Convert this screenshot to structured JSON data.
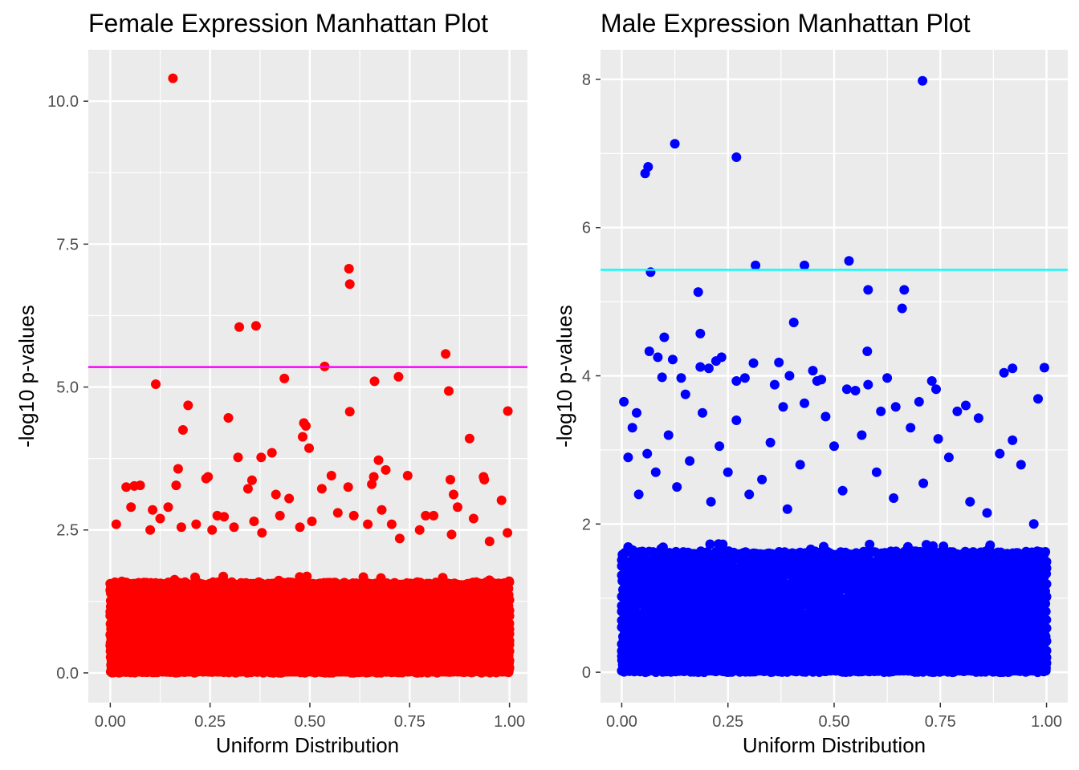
{
  "chart_data": [
    {
      "type": "scatter",
      "title": "Female Expression Manhattan Plot",
      "xlabel": "Uniform Distribution",
      "ylabel": "-log10 p-values",
      "xlim": [
        -0.055,
        1.045
      ],
      "ylim": [
        -0.52,
        10.9
      ],
      "x_ticks": [
        0,
        0.25,
        0.5,
        0.75,
        1
      ],
      "x_tick_labels": [
        "0.00",
        "0.25",
        "0.50",
        "0.75",
        "1.00"
      ],
      "y_ticks": [
        0,
        2.5,
        5,
        7.5,
        10
      ],
      "y_tick_labels": [
        "0.0",
        "2.5",
        "5.0",
        "7.5",
        "10.0"
      ],
      "grid": true,
      "point_color": "#ff0000",
      "threshold": 5.35,
      "threshold_color": "#ff00ff",
      "dense_band_max": 1.7,
      "sample_seed": 17,
      "n_background_points": 2600,
      "points": [
        [
          0.157,
          10.4
        ],
        [
          0.598,
          7.07
        ],
        [
          0.6,
          6.8
        ],
        [
          0.323,
          6.05
        ],
        [
          0.365,
          6.07
        ],
        [
          0.84,
          5.58
        ],
        [
          0.537,
          5.36
        ],
        [
          0.114,
          5.05
        ],
        [
          0.436,
          5.15
        ],
        [
          0.662,
          5.1
        ],
        [
          0.722,
          5.18
        ],
        [
          0.848,
          4.93
        ],
        [
          0.195,
          4.68
        ],
        [
          0.6,
          4.57
        ],
        [
          0.996,
          4.58
        ],
        [
          0.485,
          4.37
        ],
        [
          0.49,
          4.32
        ],
        [
          0.296,
          4.46
        ],
        [
          0.482,
          4.13
        ],
        [
          0.182,
          4.25
        ],
        [
          0.9,
          4.1
        ],
        [
          0.498,
          3.93
        ],
        [
          0.32,
          3.77
        ],
        [
          0.378,
          3.77
        ],
        [
          0.405,
          3.85
        ],
        [
          0.672,
          3.72
        ],
        [
          0.17,
          3.57
        ],
        [
          0.355,
          3.37
        ],
        [
          0.554,
          3.45
        ],
        [
          0.69,
          3.55
        ],
        [
          0.66,
          3.43
        ],
        [
          0.745,
          3.45
        ],
        [
          0.24,
          3.4
        ],
        [
          0.245,
          3.43
        ],
        [
          0.06,
          3.27
        ],
        [
          0.04,
          3.25
        ],
        [
          0.075,
          3.28
        ],
        [
          0.935,
          3.43
        ],
        [
          0.937,
          3.38
        ],
        [
          0.852,
          3.38
        ],
        [
          0.345,
          3.22
        ],
        [
          0.415,
          3.12
        ],
        [
          0.448,
          3.05
        ],
        [
          0.53,
          3.22
        ],
        [
          0.596,
          3.25
        ],
        [
          0.655,
          3.3
        ],
        [
          0.86,
          3.12
        ],
        [
          0.98,
          3.02
        ],
        [
          0.165,
          3.28
        ],
        [
          0.215,
          2.6
        ],
        [
          0.268,
          2.75
        ],
        [
          0.285,
          2.73
        ],
        [
          0.052,
          2.9
        ],
        [
          0.106,
          2.85
        ],
        [
          0.145,
          2.9
        ],
        [
          0.36,
          2.65
        ],
        [
          0.425,
          2.75
        ],
        [
          0.475,
          2.55
        ],
        [
          0.57,
          2.8
        ],
        [
          0.61,
          2.75
        ],
        [
          0.68,
          2.85
        ],
        [
          0.79,
          2.75
        ],
        [
          0.81,
          2.75
        ],
        [
          0.87,
          2.9
        ],
        [
          0.91,
          2.7
        ],
        [
          0.015,
          2.6
        ],
        [
          0.125,
          2.7
        ],
        [
          0.178,
          2.55
        ],
        [
          0.255,
          2.5
        ],
        [
          0.31,
          2.55
        ],
        [
          0.38,
          2.45
        ],
        [
          0.505,
          2.65
        ],
        [
          0.645,
          2.6
        ],
        [
          0.705,
          2.6
        ],
        [
          0.775,
          2.5
        ],
        [
          0.855,
          2.42
        ],
        [
          0.95,
          2.3
        ],
        [
          0.995,
          2.45
        ],
        [
          0.1,
          2.5
        ],
        [
          0.725,
          2.35
        ]
      ]
    },
    {
      "type": "scatter",
      "title": "Male Expression Manhattan Plot",
      "xlabel": "Uniform Distribution",
      "ylabel": "-log10 p-values",
      "xlim": [
        -0.05,
        1.05
      ],
      "ylim": [
        -0.41,
        8.4
      ],
      "x_ticks": [
        0,
        0.25,
        0.5,
        0.75,
        1
      ],
      "x_tick_labels": [
        "0.00",
        "0.25",
        "0.50",
        "0.75",
        "1.00"
      ],
      "y_ticks": [
        0,
        2,
        4,
        6,
        8
      ],
      "y_tick_labels": [
        "0",
        "2",
        "4",
        "6",
        "8"
      ],
      "grid": true,
      "point_color": "#0000ff",
      "threshold": 5.43,
      "threshold_color": "#00ffff",
      "dense_band_max": 1.75,
      "sample_seed": 29,
      "n_background_points": 3200,
      "points": [
        [
          0.708,
          7.98
        ],
        [
          0.125,
          7.13
        ],
        [
          0.27,
          6.95
        ],
        [
          0.062,
          6.82
        ],
        [
          0.055,
          6.73
        ],
        [
          0.535,
          5.55
        ],
        [
          0.315,
          5.49
        ],
        [
          0.43,
          5.49
        ],
        [
          0.068,
          5.4
        ],
        [
          0.18,
          5.13
        ],
        [
          0.58,
          5.16
        ],
        [
          0.665,
          5.16
        ],
        [
          0.66,
          4.91
        ],
        [
          0.405,
          4.72
        ],
        [
          0.185,
          4.57
        ],
        [
          0.1,
          4.52
        ],
        [
          0.065,
          4.33
        ],
        [
          0.578,
          4.33
        ],
        [
          0.085,
          4.25
        ],
        [
          0.235,
          4.25
        ],
        [
          0.222,
          4.2
        ],
        [
          0.37,
          4.18
        ],
        [
          0.31,
          4.17
        ],
        [
          0.12,
          4.22
        ],
        [
          0.185,
          4.12
        ],
        [
          0.205,
          4.1
        ],
        [
          0.45,
          4.07
        ],
        [
          0.995,
          4.11
        ],
        [
          0.92,
          4.1
        ],
        [
          0.9,
          4.04
        ],
        [
          0.095,
          3.98
        ],
        [
          0.14,
          3.97
        ],
        [
          0.29,
          3.97
        ],
        [
          0.395,
          4.0
        ],
        [
          0.625,
          3.97
        ],
        [
          0.47,
          3.95
        ],
        [
          0.46,
          3.93
        ],
        [
          0.27,
          3.93
        ],
        [
          0.36,
          3.88
        ],
        [
          0.58,
          3.88
        ],
        [
          0.73,
          3.93
        ],
        [
          0.74,
          3.82
        ],
        [
          0.53,
          3.82
        ],
        [
          0.55,
          3.8
        ],
        [
          0.15,
          3.75
        ],
        [
          0.43,
          3.63
        ],
        [
          0.98,
          3.69
        ],
        [
          0.005,
          3.65
        ],
        [
          0.645,
          3.58
        ],
        [
          0.79,
          3.52
        ],
        [
          0.81,
          3.6
        ],
        [
          0.7,
          3.65
        ],
        [
          0.61,
          3.52
        ],
        [
          0.38,
          3.58
        ],
        [
          0.19,
          3.5
        ],
        [
          0.035,
          3.5
        ],
        [
          0.84,
          3.43
        ],
        [
          0.48,
          3.45
        ],
        [
          0.27,
          3.4
        ],
        [
          0.92,
          3.13
        ],
        [
          0.025,
          3.3
        ],
        [
          0.11,
          3.2
        ],
        [
          0.23,
          3.05
        ],
        [
          0.35,
          3.1
        ],
        [
          0.5,
          3.05
        ],
        [
          0.565,
          3.2
        ],
        [
          0.68,
          3.3
        ],
        [
          0.745,
          3.15
        ],
        [
          0.89,
          2.95
        ],
        [
          0.77,
          2.9
        ],
        [
          0.015,
          2.9
        ],
        [
          0.06,
          2.95
        ],
        [
          0.08,
          2.7
        ],
        [
          0.16,
          2.85
        ],
        [
          0.25,
          2.7
        ],
        [
          0.33,
          2.6
        ],
        [
          0.42,
          2.8
        ],
        [
          0.6,
          2.7
        ],
        [
          0.71,
          2.55
        ],
        [
          0.94,
          2.8
        ],
        [
          0.04,
          2.4
        ],
        [
          0.13,
          2.5
        ],
        [
          0.21,
          2.3
        ],
        [
          0.3,
          2.4
        ],
        [
          0.39,
          2.2
        ],
        [
          0.52,
          2.45
        ],
        [
          0.64,
          2.35
        ],
        [
          0.82,
          2.3
        ],
        [
          0.97,
          2.0
        ],
        [
          0.86,
          2.15
        ]
      ]
    }
  ]
}
